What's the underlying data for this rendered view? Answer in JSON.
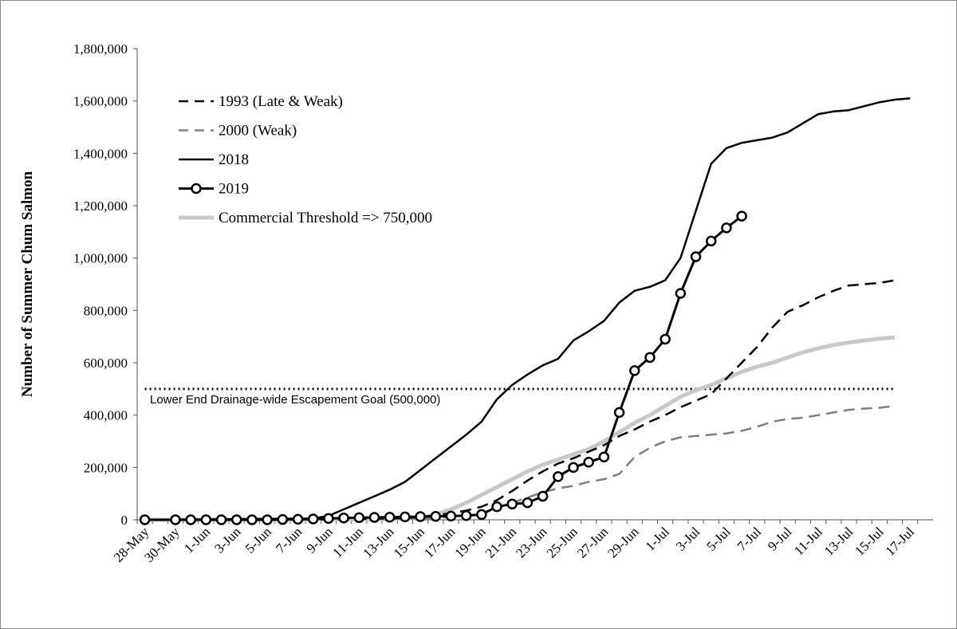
{
  "chart_data": {
    "type": "line",
    "title": "",
    "xlabel": "",
    "ylabel": "Number of Summer Chum Salmon",
    "ylim": [
      0,
      1800000
    ],
    "y_ticks": [
      {
        "value": 0,
        "label": "0"
      },
      {
        "value": 200000,
        "label": "200,000"
      },
      {
        "value": 400000,
        "label": "400,000"
      },
      {
        "value": 600000,
        "label": "600,000"
      },
      {
        "value": 800000,
        "label": "800,000"
      },
      {
        "value": 1000000,
        "label": "1,000,000"
      },
      {
        "value": 1200000,
        "label": "1,200,000"
      },
      {
        "value": 1400000,
        "label": "1,400,000"
      },
      {
        "value": 1600000,
        "label": "1,600,000"
      },
      {
        "value": 1800000,
        "label": "1,800,000"
      }
    ],
    "x_dates": [
      "28-May",
      "29-May",
      "30-May",
      "31-May",
      "1-Jun",
      "2-Jun",
      "3-Jun",
      "4-Jun",
      "5-Jun",
      "6-Jun",
      "7-Jun",
      "8-Jun",
      "9-Jun",
      "10-Jun",
      "11-Jun",
      "12-Jun",
      "13-Jun",
      "14-Jun",
      "15-Jun",
      "16-Jun",
      "17-Jun",
      "18-Jun",
      "19-Jun",
      "20-Jun",
      "21-Jun",
      "22-Jun",
      "23-Jun",
      "24-Jun",
      "25-Jun",
      "26-Jun",
      "27-Jun",
      "28-Jun",
      "29-Jun",
      "30-Jun",
      "1-Jul",
      "2-Jul",
      "3-Jul",
      "4-Jul",
      "5-Jul",
      "6-Jul",
      "7-Jul",
      "8-Jul",
      "9-Jul",
      "10-Jul",
      "11-Jul",
      "12-Jul",
      "13-Jul",
      "14-Jul",
      "15-Jul",
      "16-Jul",
      "17-Jul",
      "18-Jul"
    ],
    "x_tick_labels": [
      "28-May",
      "30-May",
      "1-Jun",
      "3-Jun",
      "5-Jun",
      "7-Jun",
      "9-Jun",
      "11-Jun",
      "13-Jun",
      "15-Jun",
      "17-Jun",
      "19-Jun",
      "21-Jun",
      "23-Jun",
      "25-Jun",
      "27-Jun",
      "29-Jun",
      "1-Jul",
      "3-Jul",
      "5-Jul",
      "7-Jul",
      "9-Jul",
      "11-Jul",
      "13-Jul",
      "15-Jul",
      "17-Jul"
    ],
    "legend_position": "top-left",
    "series": [
      {
        "name": "1993 (Late & Weak)",
        "style": "dashed",
        "color": "#000000",
        "points": [
          [
            "28-May",
            0
          ],
          [
            "9-Jun",
            2000
          ],
          [
            "13-Jun",
            5000
          ],
          [
            "15-Jun",
            10000
          ],
          [
            "17-Jun",
            25000
          ],
          [
            "18-Jun",
            35000
          ],
          [
            "19-Jun",
            50000
          ],
          [
            "20-Jun",
            75000
          ],
          [
            "21-Jun",
            110000
          ],
          [
            "22-Jun",
            150000
          ],
          [
            "23-Jun",
            185000
          ],
          [
            "24-Jun",
            215000
          ],
          [
            "25-Jun",
            235000
          ],
          [
            "26-Jun",
            260000
          ],
          [
            "27-Jun",
            285000
          ],
          [
            "28-Jun",
            320000
          ],
          [
            "29-Jun",
            345000
          ],
          [
            "30-Jun",
            375000
          ],
          [
            "1-Jul",
            400000
          ],
          [
            "2-Jul",
            430000
          ],
          [
            "3-Jul",
            455000
          ],
          [
            "4-Jul",
            480000
          ],
          [
            "5-Jul",
            540000
          ],
          [
            "6-Jul",
            600000
          ],
          [
            "7-Jul",
            660000
          ],
          [
            "8-Jul",
            735000
          ],
          [
            "9-Jul",
            795000
          ],
          [
            "10-Jul",
            820000
          ],
          [
            "11-Jul",
            850000
          ],
          [
            "12-Jul",
            875000
          ],
          [
            "13-Jul",
            895000
          ],
          [
            "14-Jul",
            900000
          ],
          [
            "15-Jul",
            905000
          ],
          [
            "16-Jul",
            915000
          ]
        ]
      },
      {
        "name": "2000 (Weak)",
        "style": "dashed",
        "color": "#7f7f7f",
        "points": [
          [
            "28-May",
            0
          ],
          [
            "9-Jun",
            1000
          ],
          [
            "15-Jun",
            5000
          ],
          [
            "17-Jun",
            10000
          ],
          [
            "19-Jun",
            25000
          ],
          [
            "20-Jun",
            45000
          ],
          [
            "21-Jun",
            65000
          ],
          [
            "22-Jun",
            85000
          ],
          [
            "23-Jun",
            105000
          ],
          [
            "24-Jun",
            120000
          ],
          [
            "25-Jun",
            130000
          ],
          [
            "26-Jun",
            145000
          ],
          [
            "27-Jun",
            155000
          ],
          [
            "28-Jun",
            175000
          ],
          [
            "29-Jun",
            240000
          ],
          [
            "30-Jun",
            275000
          ],
          [
            "1-Jul",
            300000
          ],
          [
            "2-Jul",
            315000
          ],
          [
            "3-Jul",
            320000
          ],
          [
            "4-Jul",
            325000
          ],
          [
            "5-Jul",
            330000
          ],
          [
            "6-Jul",
            340000
          ],
          [
            "7-Jul",
            355000
          ],
          [
            "8-Jul",
            375000
          ],
          [
            "9-Jul",
            385000
          ],
          [
            "10-Jul",
            390000
          ],
          [
            "11-Jul",
            400000
          ],
          [
            "12-Jul",
            410000
          ],
          [
            "13-Jul",
            420000
          ],
          [
            "14-Jul",
            425000
          ],
          [
            "15-Jul",
            428000
          ],
          [
            "16-Jul",
            435000
          ]
        ]
      },
      {
        "name": "2018",
        "style": "solid",
        "color": "#000000",
        "points": [
          [
            "28-May",
            0
          ],
          [
            "8-Jun",
            5000
          ],
          [
            "9-Jun",
            15000
          ],
          [
            "10-Jun",
            40000
          ],
          [
            "11-Jun",
            65000
          ],
          [
            "12-Jun",
            90000
          ],
          [
            "13-Jun",
            115000
          ],
          [
            "14-Jun",
            145000
          ],
          [
            "15-Jun",
            190000
          ],
          [
            "16-Jun",
            235000
          ],
          [
            "17-Jun",
            280000
          ],
          [
            "18-Jun",
            325000
          ],
          [
            "19-Jun",
            375000
          ],
          [
            "20-Jun",
            460000
          ],
          [
            "21-Jun",
            515000
          ],
          [
            "22-Jun",
            555000
          ],
          [
            "23-Jun",
            590000
          ],
          [
            "24-Jun",
            615000
          ],
          [
            "25-Jun",
            685000
          ],
          [
            "26-Jun",
            720000
          ],
          [
            "27-Jun",
            760000
          ],
          [
            "28-Jun",
            830000
          ],
          [
            "29-Jun",
            875000
          ],
          [
            "30-Jun",
            890000
          ],
          [
            "1-Jul",
            915000
          ],
          [
            "2-Jul",
            1000000
          ],
          [
            "3-Jul",
            1180000
          ],
          [
            "4-Jul",
            1360000
          ],
          [
            "5-Jul",
            1420000
          ],
          [
            "6-Jul",
            1440000
          ],
          [
            "7-Jul",
            1450000
          ],
          [
            "8-Jul",
            1460000
          ],
          [
            "9-Jul",
            1480000
          ],
          [
            "10-Jul",
            1515000
          ],
          [
            "11-Jul",
            1550000
          ],
          [
            "12-Jul",
            1560000
          ],
          [
            "13-Jul",
            1565000
          ],
          [
            "14-Jul",
            1580000
          ],
          [
            "15-Jul",
            1595000
          ],
          [
            "16-Jul",
            1605000
          ],
          [
            "17-Jul",
            1610000
          ]
        ]
      },
      {
        "name": "2019",
        "style": "solid-markers",
        "color": "#000000",
        "points": [
          [
            "28-May",
            0
          ],
          [
            "30-May",
            0
          ],
          [
            "31-May",
            0
          ],
          [
            "1-Jun",
            0
          ],
          [
            "2-Jun",
            0
          ],
          [
            "3-Jun",
            0
          ],
          [
            "4-Jun",
            0
          ],
          [
            "5-Jun",
            0
          ],
          [
            "6-Jun",
            1000
          ],
          [
            "7-Jun",
            2000
          ],
          [
            "8-Jun",
            3000
          ],
          [
            "9-Jun",
            5000
          ],
          [
            "10-Jun",
            7000
          ],
          [
            "11-Jun",
            8000
          ],
          [
            "12-Jun",
            9000
          ],
          [
            "13-Jun",
            10000
          ],
          [
            "14-Jun",
            11000
          ],
          [
            "15-Jun",
            12000
          ],
          [
            "16-Jun",
            13000
          ],
          [
            "17-Jun",
            14000
          ],
          [
            "18-Jun",
            16000
          ],
          [
            "19-Jun",
            20000
          ],
          [
            "20-Jun",
            50000
          ],
          [
            "21-Jun",
            60000
          ],
          [
            "22-Jun",
            65000
          ],
          [
            "23-Jun",
            90000
          ],
          [
            "24-Jun",
            165000
          ],
          [
            "25-Jun",
            200000
          ],
          [
            "26-Jun",
            220000
          ],
          [
            "27-Jun",
            240000
          ],
          [
            "28-Jun",
            410000
          ],
          [
            "29-Jun",
            570000
          ],
          [
            "30-Jun",
            620000
          ],
          [
            "1-Jul",
            690000
          ],
          [
            "2-Jul",
            865000
          ],
          [
            "3-Jul",
            1005000
          ],
          [
            "4-Jul",
            1065000
          ],
          [
            "5-Jul",
            1115000
          ],
          [
            "6-Jul",
            1160000
          ]
        ]
      },
      {
        "name": "Commercial Threshold => 750,000",
        "style": "solid-thick",
        "color": "#c8c8c8",
        "points": [
          [
            "28-May",
            0
          ],
          [
            "13-Jun",
            2000
          ],
          [
            "15-Jun",
            8000
          ],
          [
            "16-Jun",
            20000
          ],
          [
            "17-Jun",
            40000
          ],
          [
            "18-Jun",
            65000
          ],
          [
            "19-Jun",
            95000
          ],
          [
            "20-Jun",
            125000
          ],
          [
            "21-Jun",
            155000
          ],
          [
            "22-Jun",
            185000
          ],
          [
            "23-Jun",
            210000
          ],
          [
            "24-Jun",
            230000
          ],
          [
            "25-Jun",
            250000
          ],
          [
            "26-Jun",
            270000
          ],
          [
            "27-Jun",
            300000
          ],
          [
            "28-Jun",
            335000
          ],
          [
            "29-Jun",
            370000
          ],
          [
            "30-Jun",
            400000
          ],
          [
            "1-Jul",
            435000
          ],
          [
            "2-Jul",
            470000
          ],
          [
            "3-Jul",
            495000
          ],
          [
            "4-Jul",
            515000
          ],
          [
            "5-Jul",
            540000
          ],
          [
            "6-Jul",
            565000
          ],
          [
            "7-Jul",
            585000
          ],
          [
            "8-Jul",
            600000
          ],
          [
            "9-Jul",
            620000
          ],
          [
            "10-Jul",
            640000
          ],
          [
            "11-Jul",
            655000
          ],
          [
            "12-Jul",
            668000
          ],
          [
            "13-Jul",
            677000
          ],
          [
            "14-Jul",
            685000
          ],
          [
            "15-Jul",
            692000
          ],
          [
            "16-Jul",
            697000
          ]
        ]
      }
    ],
    "reference_line": {
      "label": "Lower End Drainage-wide Escapement Goal (500,000)",
      "value": 500000,
      "style": "dotted",
      "start": "28-May",
      "end": "16-Jul"
    },
    "grid": false
  }
}
